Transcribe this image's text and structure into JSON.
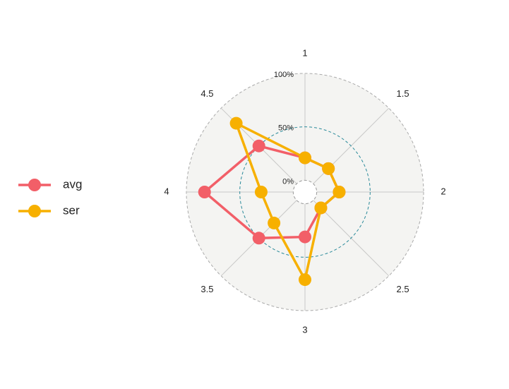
{
  "chart_data": {
    "type": "radar",
    "categories": [
      "1",
      "1.5",
      "2",
      "2.5",
      "3",
      "3.5",
      "4",
      "4.5"
    ],
    "series": [
      {
        "name": "avg",
        "color": "#f25f68",
        "values": [
          0.21,
          0.2,
          0.21,
          0.1,
          0.31,
          0.5,
          0.83,
          0.5
        ]
      },
      {
        "name": "ser",
        "color": "#f7b000",
        "values": [
          0.21,
          0.2,
          0.21,
          0.1,
          0.71,
          0.3,
          0.3,
          0.8
        ]
      }
    ],
    "ylim": [
      -0.11,
      1
    ],
    "yticks": [
      {
        "value": 0,
        "label": "0%"
      },
      {
        "value": 0.5,
        "label": "50%"
      },
      {
        "value": 1,
        "label": "100%"
      }
    ],
    "legend": "left"
  }
}
